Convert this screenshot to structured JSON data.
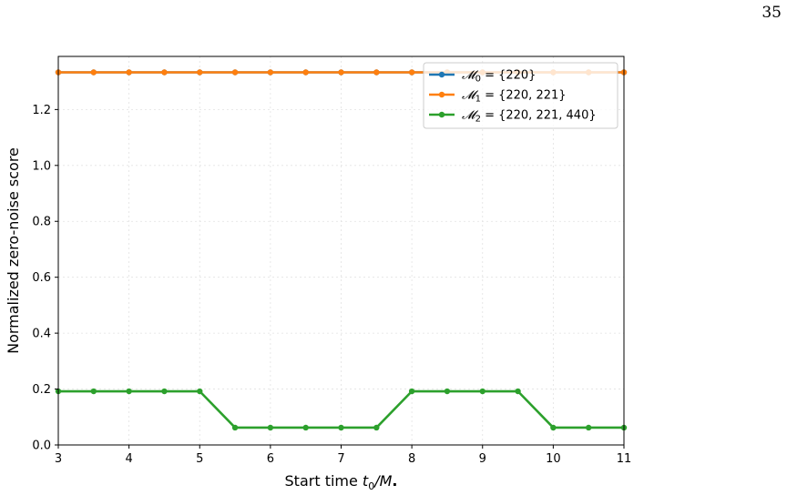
{
  "page": {
    "number": "35"
  },
  "chart_data": {
    "type": "line",
    "xlabel_main": "Start time ",
    "xlabel_var": "t",
    "xlabel_sub": "0",
    "xlabel_rest": "/M",
    "xlabel_end": ".",
    "ylabel": "Normalized zero-noise score",
    "xlim": [
      3,
      11
    ],
    "ylim": [
      0.0,
      1.39
    ],
    "xticks": [
      3,
      4,
      5,
      6,
      7,
      8,
      9,
      10,
      11
    ],
    "yticks": [
      0.0,
      0.2,
      0.4,
      0.6,
      0.8,
      1.0,
      1.2
    ],
    "ytick_labels": [
      "0.0",
      "0.2",
      "0.4",
      "0.6",
      "0.8",
      "1.0",
      "1.2"
    ],
    "grid": true,
    "legend_position": "top-right",
    "x": [
      3,
      3.5,
      4,
      4.5,
      5,
      5.5,
      6,
      6.5,
      7,
      7.5,
      8,
      8.5,
      9,
      9.5,
      10,
      10.5,
      11
    ],
    "series": [
      {
        "label_math": "𝓜",
        "label_sub": "0",
        "label_rest": " = {220}",
        "color": "#1f77b4",
        "values": [
          1.333,
          1.333,
          1.333,
          1.333,
          1.333,
          1.333,
          1.333,
          1.333,
          1.333,
          1.333,
          1.333,
          1.333,
          1.333,
          1.333,
          1.333,
          1.333,
          1.333
        ]
      },
      {
        "label_math": "𝓜",
        "label_sub": "1",
        "label_rest": " = {220, 221}",
        "color": "#ff7f0e",
        "values": [
          1.333,
          1.333,
          1.333,
          1.333,
          1.333,
          1.333,
          1.333,
          1.333,
          1.333,
          1.333,
          1.333,
          1.333,
          1.333,
          1.333,
          1.333,
          1.333,
          1.333
        ]
      },
      {
        "label_math": "𝓜",
        "label_sub": "2",
        "label_rest": " = {220, 221, 440}",
        "color": "#2ca02c",
        "values": [
          0.192,
          0.192,
          0.192,
          0.192,
          0.192,
          0.062,
          0.062,
          0.062,
          0.062,
          0.062,
          0.192,
          0.192,
          0.192,
          0.192,
          0.062,
          0.062,
          0.062
        ]
      }
    ]
  }
}
